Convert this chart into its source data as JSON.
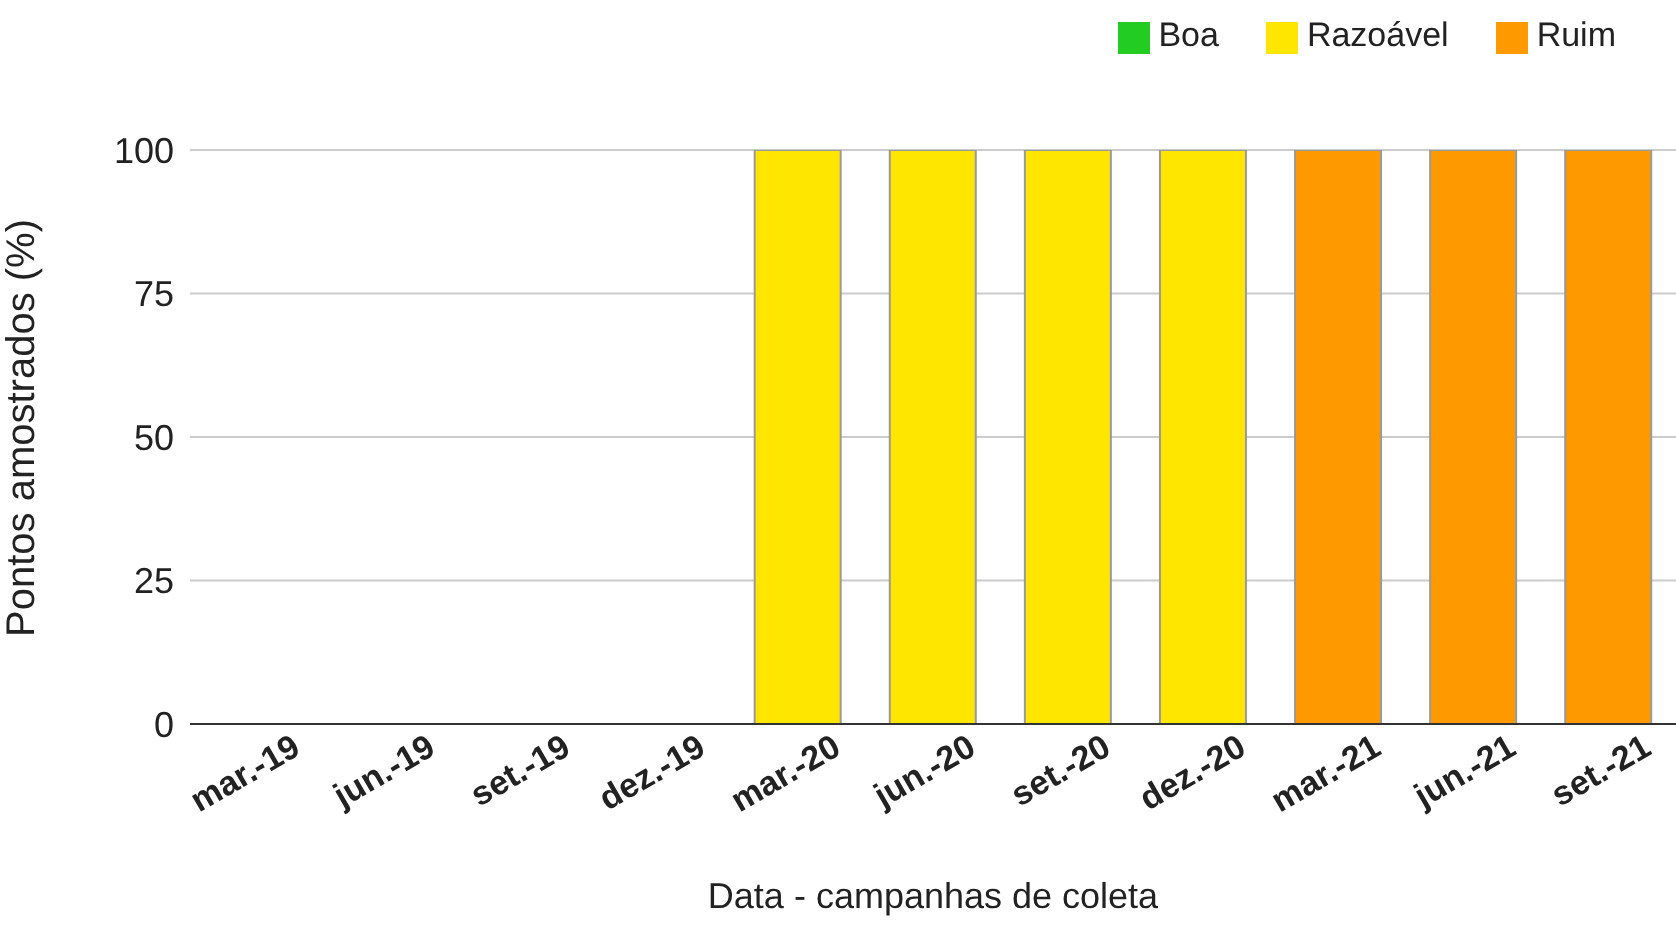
{
  "chart_data": {
    "type": "bar",
    "stacked": true,
    "xlabel": "Data - campanhas de coleta",
    "ylabel": "Pontos amostrados (%)",
    "categories": [
      "mar.-19",
      "jun.-19",
      "set.-19",
      "dez.-19",
      "mar.-20",
      "jun.-20",
      "set.-20",
      "dez.-20",
      "mar.-21",
      "jun.-21",
      "set.-21"
    ],
    "series": [
      {
        "name": "Boa",
        "color": "#22cc22",
        "values": [
          0,
          0,
          0,
          0,
          0,
          0,
          0,
          0,
          0,
          0,
          0
        ]
      },
      {
        "name": "Razoável",
        "color": "#ffe600",
        "values": [
          0,
          0,
          0,
          0,
          100,
          100,
          100,
          100,
          0,
          0,
          0
        ]
      },
      {
        "name": "Ruim",
        "color": "#ff9900",
        "values": [
          0,
          0,
          0,
          0,
          0,
          0,
          0,
          0,
          100,
          100,
          100
        ]
      }
    ],
    "ylim": [
      0,
      100
    ],
    "yticks": [
      0,
      25,
      50,
      75,
      100
    ],
    "grid": "y",
    "legend": "top right"
  }
}
